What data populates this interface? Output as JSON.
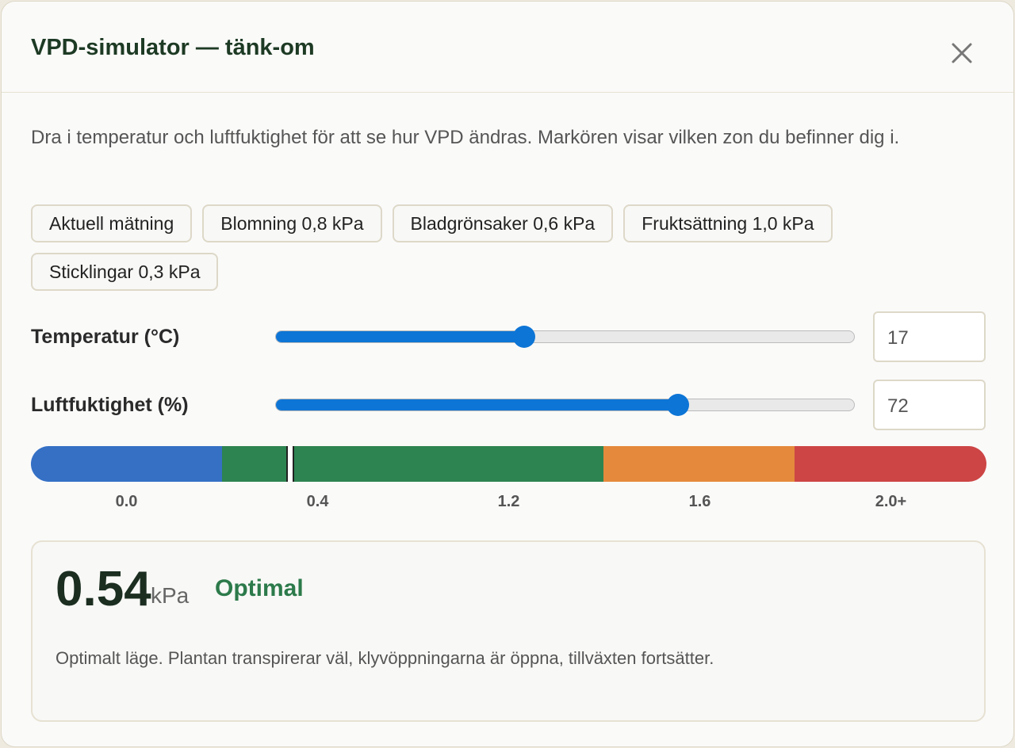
{
  "header": {
    "title": "VPD-simulator — tänk-om"
  },
  "description": "Dra i temperatur och luftfuktighet för att se hur VPD ändras. Markören visar vilken zon du befinner dig i.",
  "presets": [
    "Aktuell mätning",
    "Blomning 0,8 kPa",
    "Bladgrönsaker 0,6 kPa",
    "Fruktsättning 1,0 kPa",
    "Sticklingar 0,3 kPa"
  ],
  "controls": [
    {
      "label": "Temperatur (°C)",
      "value": "17"
    },
    {
      "label": "Luftfuktighet (%)",
      "value": "72"
    }
  ],
  "scale": {
    "labels": [
      "0.0",
      "0.4",
      "1.2",
      "1.6",
      "2.0+"
    ]
  },
  "result": {
    "value": "0.54",
    "unit": "kPa",
    "status": "Optimal",
    "description": "Optimalt läge. Plantan transpirerar väl, klyvöppningarna är öppna, tillväxten fortsätter."
  }
}
